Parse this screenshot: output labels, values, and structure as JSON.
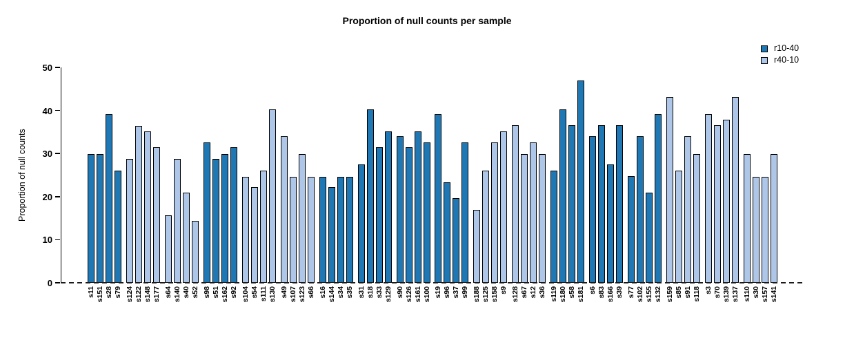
{
  "chart_data": {
    "type": "bar",
    "title": "Proportion of null counts per sample",
    "xlabel": "",
    "ylabel": "Proportion of null counts",
    "ylim": [
      0,
      50
    ],
    "yticks": [
      0,
      10,
      20,
      30,
      40,
      50
    ],
    "grid": false,
    "zero_line_style": "dashed",
    "legend_position": "top-right",
    "legend": [
      {
        "label": "r10-40",
        "color": "#1f77b4"
      },
      {
        "label": "r40-10",
        "color": "#aec7e8"
      }
    ],
    "group_size": 4,
    "bars": [
      {
        "label": "s11",
        "value": 29.9,
        "series": "r10-40"
      },
      {
        "label": "s151",
        "value": 29.9,
        "series": "r10-40"
      },
      {
        "label": "s28",
        "value": 39.2,
        "series": "r10-40"
      },
      {
        "label": "s79",
        "value": 26.1,
        "series": "r10-40"
      },
      {
        "label": "s124",
        "value": 28.7,
        "series": "r40-10"
      },
      {
        "label": "s122",
        "value": 36.5,
        "series": "r40-10"
      },
      {
        "label": "s148",
        "value": 35.2,
        "series": "r40-10"
      },
      {
        "label": "s177",
        "value": 31.4,
        "series": "r40-10"
      },
      {
        "label": "s64",
        "value": 15.6,
        "series": "r40-10"
      },
      {
        "label": "s140",
        "value": 28.7,
        "series": "r40-10"
      },
      {
        "label": "s40",
        "value": 20.9,
        "series": "r40-10"
      },
      {
        "label": "s52",
        "value": 14.3,
        "series": "r40-10"
      },
      {
        "label": "s98",
        "value": 32.6,
        "series": "r10-40"
      },
      {
        "label": "s51",
        "value": 28.7,
        "series": "r10-40"
      },
      {
        "label": "s162",
        "value": 29.9,
        "series": "r10-40"
      },
      {
        "label": "s92",
        "value": 31.4,
        "series": "r10-40"
      },
      {
        "label": "s104",
        "value": 24.6,
        "series": "r40-10"
      },
      {
        "label": "s54",
        "value": 22.2,
        "series": "r40-10"
      },
      {
        "label": "s111",
        "value": 26.1,
        "series": "r40-10"
      },
      {
        "label": "s130",
        "value": 40.3,
        "series": "r40-10"
      },
      {
        "label": "s49",
        "value": 34.0,
        "series": "r40-10"
      },
      {
        "label": "s107",
        "value": 24.6,
        "series": "r40-10"
      },
      {
        "label": "s123",
        "value": 29.9,
        "series": "r40-10"
      },
      {
        "label": "s66",
        "value": 24.6,
        "series": "r40-10"
      },
      {
        "label": "s16",
        "value": 24.6,
        "series": "r10-40"
      },
      {
        "label": "s144",
        "value": 22.2,
        "series": "r10-40"
      },
      {
        "label": "s34",
        "value": 24.6,
        "series": "r10-40"
      },
      {
        "label": "s35",
        "value": 24.6,
        "series": "r10-40"
      },
      {
        "label": "s31",
        "value": 27.4,
        "series": "r10-40"
      },
      {
        "label": "s18",
        "value": 40.3,
        "series": "r10-40"
      },
      {
        "label": "s33",
        "value": 31.4,
        "series": "r10-40"
      },
      {
        "label": "s129",
        "value": 35.2,
        "series": "r10-40"
      },
      {
        "label": "s90",
        "value": 34.0,
        "series": "r10-40"
      },
      {
        "label": "s126",
        "value": 31.4,
        "series": "r10-40"
      },
      {
        "label": "s161",
        "value": 35.2,
        "series": "r10-40"
      },
      {
        "label": "s100",
        "value": 32.6,
        "series": "r10-40"
      },
      {
        "label": "s19",
        "value": 39.2,
        "series": "r10-40"
      },
      {
        "label": "s96",
        "value": 23.3,
        "series": "r10-40"
      },
      {
        "label": "s37",
        "value": 19.6,
        "series": "r10-40"
      },
      {
        "label": "s99",
        "value": 32.6,
        "series": "r10-40"
      },
      {
        "label": "s188",
        "value": 16.9,
        "series": "r40-10"
      },
      {
        "label": "s125",
        "value": 26.1,
        "series": "r40-10"
      },
      {
        "label": "s158",
        "value": 32.6,
        "series": "r40-10"
      },
      {
        "label": "s9",
        "value": 35.2,
        "series": "r40-10"
      },
      {
        "label": "s128",
        "value": 36.6,
        "series": "r40-10"
      },
      {
        "label": "s67",
        "value": 29.9,
        "series": "r40-10"
      },
      {
        "label": "s12",
        "value": 32.6,
        "series": "r40-10"
      },
      {
        "label": "s36",
        "value": 29.9,
        "series": "r40-10"
      },
      {
        "label": "s119",
        "value": 26.1,
        "series": "r10-40"
      },
      {
        "label": "s180",
        "value": 40.3,
        "series": "r10-40"
      },
      {
        "label": "s58",
        "value": 36.6,
        "series": "r10-40"
      },
      {
        "label": "s181",
        "value": 47.0,
        "series": "r10-40"
      },
      {
        "label": "s6",
        "value": 34.0,
        "series": "r10-40"
      },
      {
        "label": "s83",
        "value": 36.6,
        "series": "r10-40"
      },
      {
        "label": "s166",
        "value": 27.4,
        "series": "r10-40"
      },
      {
        "label": "s39",
        "value": 36.6,
        "series": "r10-40"
      },
      {
        "label": "s77",
        "value": 24.7,
        "series": "r10-40"
      },
      {
        "label": "s102",
        "value": 34.0,
        "series": "r10-40"
      },
      {
        "label": "s155",
        "value": 20.9,
        "series": "r10-40"
      },
      {
        "label": "s132",
        "value": 39.2,
        "series": "r10-40"
      },
      {
        "label": "s159",
        "value": 43.2,
        "series": "r40-10"
      },
      {
        "label": "s85",
        "value": 26.1,
        "series": "r40-10"
      },
      {
        "label": "s91",
        "value": 34.0,
        "series": "r40-10"
      },
      {
        "label": "s118",
        "value": 29.9,
        "series": "r40-10"
      },
      {
        "label": "s3",
        "value": 39.2,
        "series": "r40-10"
      },
      {
        "label": "s70",
        "value": 36.6,
        "series": "r40-10"
      },
      {
        "label": "s139",
        "value": 37.8,
        "series": "r40-10"
      },
      {
        "label": "s137",
        "value": 43.2,
        "series": "r40-10"
      },
      {
        "label": "s110",
        "value": 29.9,
        "series": "r40-10"
      },
      {
        "label": "s30",
        "value": 24.6,
        "series": "r40-10"
      },
      {
        "label": "s157",
        "value": 24.6,
        "series": "r40-10"
      },
      {
        "label": "s141",
        "value": 29.9,
        "series": "r40-10"
      }
    ]
  }
}
